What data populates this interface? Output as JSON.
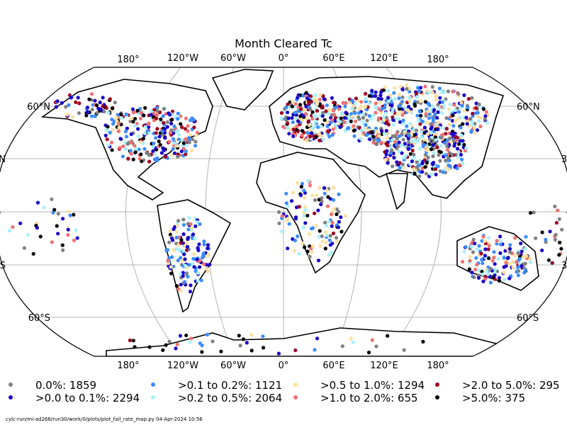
{
  "title": "Month Cleared Tc",
  "lon_labels": [
    "180°",
    "120°W",
    "60°W",
    "0°",
    "60°E",
    "120°E",
    "180°"
  ],
  "lat_labels_left": [
    "60°N",
    "N",
    "S",
    "60°S"
  ],
  "lat_labels_right": [
    "60°N",
    "3",
    "3",
    "60°S"
  ],
  "legend": [
    {
      "label": "0.0%: 1859",
      "color": "#808080"
    },
    {
      "label": ">0.0 to 0.1%: 2294",
      "color": "#1a00c8"
    },
    {
      "label": ">0.1 to 0.2%: 1121",
      "color": "#3a8cff"
    },
    {
      "label": ">0.2 to 0.5%: 2064",
      "color": "#a8f0ff"
    },
    {
      "label": ">0.5 to 1.0%: 1294",
      "color": "#ffe0a0"
    },
    {
      "label": ">1.0 to 2.0%: 655",
      "color": "#f07070"
    },
    {
      "label": ">2.0 to 5.0%: 295",
      "color": "#a00020"
    },
    {
      "label": ">5.0%: 375",
      "color": "#000000"
    }
  ],
  "footer": "cylc-run/mi-ad266/run30/work/0/plots/plot_fail_rate_map.py   04-Apr-2024 10:56"
}
